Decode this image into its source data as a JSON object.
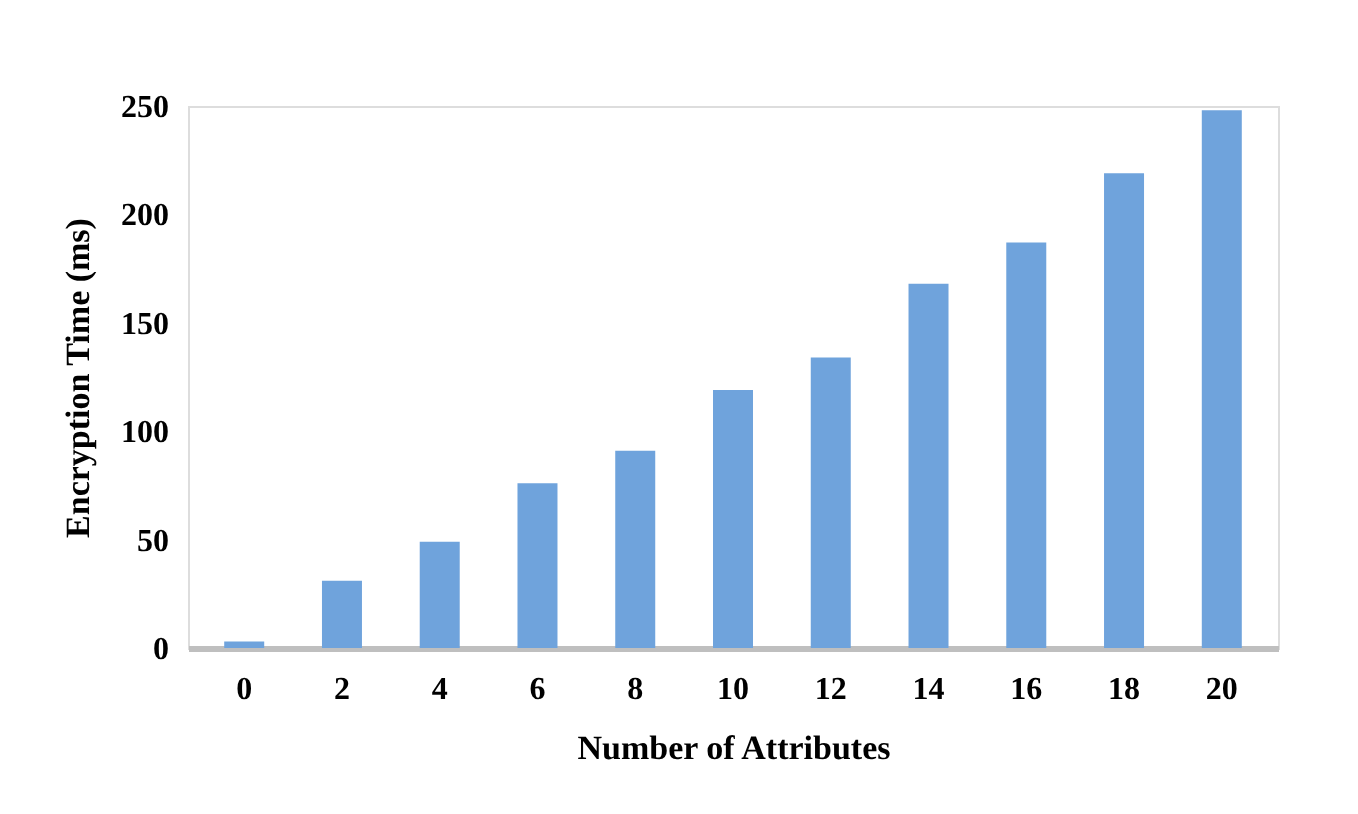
{
  "chart_data": {
    "type": "bar",
    "xlabel": "Number of Attributes",
    "ylabel": "Encryption Time (ms)",
    "categories": [
      "0",
      "2",
      "4",
      "6",
      "8",
      "10",
      "12",
      "14",
      "16",
      "18",
      "20"
    ],
    "values": [
      3,
      31,
      49,
      76,
      91,
      119,
      134,
      168,
      187,
      219,
      248
    ],
    "color": "#6fa3dc",
    "ylim": [
      0,
      250
    ],
    "yticks": [
      0,
      50,
      100,
      150,
      200,
      250
    ],
    "grid": false
  }
}
